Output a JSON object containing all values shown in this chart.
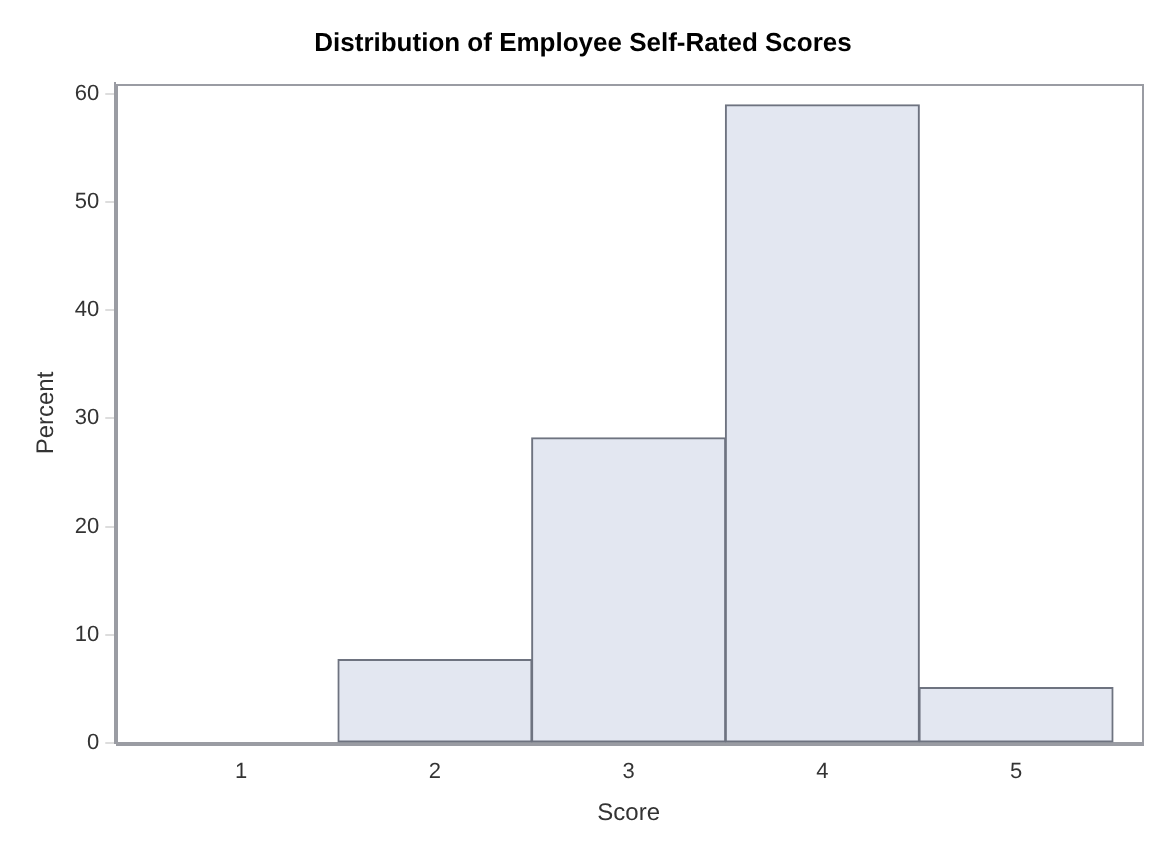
{
  "chart_data": {
    "type": "histogram",
    "title": "Distribution of Employee Self-Rated Scores",
    "xlabel": "Score",
    "ylabel": "Percent",
    "bins": [
      0.5,
      1.5,
      2.5,
      3.5,
      4.5,
      5.5
    ],
    "values": [
      0,
      7.7,
      28.2,
      59,
      5.1
    ],
    "color": "#e3e7f1",
    "xlim": [
      0.35,
      5.65
    ],
    "xticks": [
      1,
      2,
      3,
      4,
      5
    ],
    "ylim": [
      0,
      61
    ],
    "yticks": [
      0,
      10,
      20,
      30,
      40,
      50,
      60
    ],
    "grid": false,
    "legend": false
  }
}
